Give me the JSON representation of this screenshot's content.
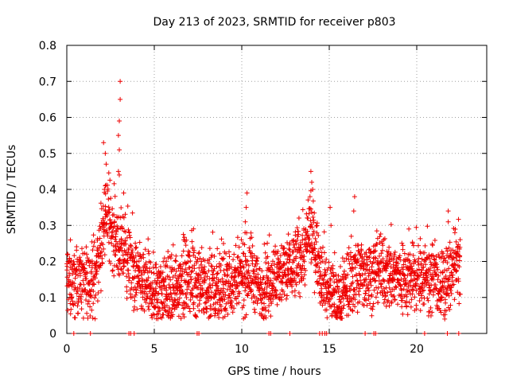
{
  "chart_data": {
    "type": "scatter",
    "title": "Day 213 of 2023, SRMTID for receiver p803",
    "xlabel": "GPS time / hours",
    "ylabel": "SRMTID / TECUs",
    "xlim": [
      0,
      24
    ],
    "ylim": [
      0,
      0.8
    ],
    "x_ticks": [
      0,
      5,
      10,
      15,
      20
    ],
    "x_tick_labels": [
      "0",
      "5",
      "10",
      "15",
      "20"
    ],
    "y_ticks": [
      0,
      0.1,
      0.2,
      0.3,
      0.4,
      0.5,
      0.6,
      0.7,
      0.8
    ],
    "y_tick_labels": [
      "0",
      "0.1",
      "0.2",
      "0.3",
      "0.4",
      "0.5",
      "0.6",
      "0.7",
      "0.8"
    ],
    "grid": true,
    "marker": "+",
    "series_color": "#ee0000",
    "trend": [
      [
        0.0,
        0.15
      ],
      [
        1.0,
        0.14
      ],
      [
        1.6,
        0.15
      ],
      [
        2.0,
        0.26
      ],
      [
        2.3,
        0.33
      ],
      [
        2.6,
        0.28
      ],
      [
        3.0,
        0.24
      ],
      [
        3.5,
        0.2
      ],
      [
        4.0,
        0.15
      ],
      [
        5.0,
        0.12
      ],
      [
        6.0,
        0.12
      ],
      [
        7.0,
        0.17
      ],
      [
        7.5,
        0.14
      ],
      [
        8.0,
        0.12
      ],
      [
        9.0,
        0.13
      ],
      [
        10.0,
        0.15
      ],
      [
        10.5,
        0.18
      ],
      [
        11.0,
        0.12
      ],
      [
        11.6,
        0.15
      ],
      [
        12.5,
        0.17
      ],
      [
        13.5,
        0.22
      ],
      [
        14.0,
        0.28
      ],
      [
        14.4,
        0.2
      ],
      [
        15.0,
        0.12
      ],
      [
        15.5,
        0.09
      ],
      [
        16.0,
        0.13
      ],
      [
        16.5,
        0.17
      ],
      [
        17.0,
        0.17
      ],
      [
        18.0,
        0.17
      ],
      [
        19.0,
        0.16
      ],
      [
        20.0,
        0.15
      ],
      [
        20.5,
        0.17
      ],
      [
        21.0,
        0.15
      ],
      [
        21.5,
        0.13
      ],
      [
        22.0,
        0.17
      ],
      [
        22.5,
        0.2
      ]
    ],
    "peaks": [
      [
        2.1,
        0.53
      ],
      [
        2.2,
        0.5
      ],
      [
        2.25,
        0.47
      ],
      [
        2.2,
        0.41
      ],
      [
        2.15,
        0.4
      ],
      [
        3.05,
        0.7
      ],
      [
        3.05,
        0.65
      ],
      [
        3.0,
        0.59
      ],
      [
        2.95,
        0.55
      ],
      [
        3.0,
        0.51
      ],
      [
        2.95,
        0.45
      ],
      [
        3.0,
        0.44
      ],
      [
        3.25,
        0.39
      ],
      [
        10.3,
        0.39
      ],
      [
        10.25,
        0.35
      ],
      [
        10.2,
        0.31
      ],
      [
        13.95,
        0.45
      ],
      [
        14.0,
        0.42
      ],
      [
        13.9,
        0.38
      ],
      [
        14.05,
        0.4
      ],
      [
        15.05,
        0.35
      ],
      [
        15.1,
        0.3
      ],
      [
        16.45,
        0.38
      ],
      [
        16.4,
        0.34
      ],
      [
        19.55,
        0.29
      ],
      [
        21.8,
        0.34
      ],
      [
        21.8,
        0.31
      ],
      [
        21.6,
        0.04
      ]
    ],
    "zero_points": [
      0.4,
      1.35,
      3.55,
      3.65,
      3.85,
      7.45,
      7.55,
      11.55,
      11.65,
      12.75,
      14.45,
      14.6,
      14.75,
      14.85,
      17.05,
      17.55,
      17.65,
      20.45,
      21.75,
      22.4
    ],
    "scatter_spread": 0.05,
    "n_points": 2600
  }
}
